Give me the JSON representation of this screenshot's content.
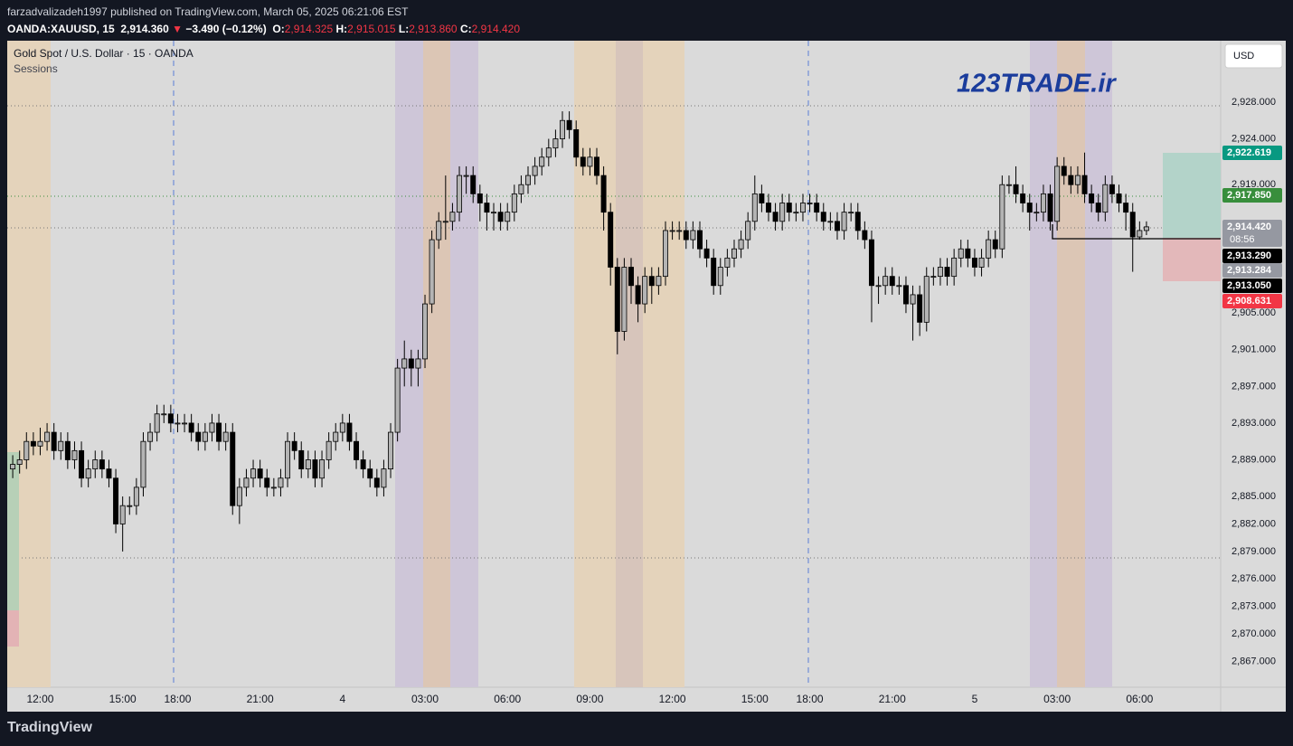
{
  "header": {
    "author_line": "farzadvalizadeh1997 published on TradingView.com, March 05, 2025 06:21:06 EST",
    "symbol": "OANDA:XAUUSD, 15",
    "last": "2,914.360",
    "arrow": "▼",
    "change": "−3.490 (−0.12%)",
    "ohlc": [
      {
        "key": "O:",
        "value": "2,914.325"
      },
      {
        "key": "H:",
        "value": "2,915.015"
      },
      {
        "key": "L:",
        "value": "2,913.860"
      },
      {
        "key": "C:",
        "value": "2,914.420"
      }
    ]
  },
  "footer": {
    "brand": "TradingView"
  },
  "chart_data": {
    "type": "candlestick",
    "title": "Gold Spot / U.S. Dollar · 15 · OANDA",
    "subtitle": "Sessions",
    "watermark": "123TRADE.ir",
    "currency": "USD",
    "countdown": "08:56",
    "up_color": "#b4b4b4",
    "down_color": "#000000",
    "grid": false,
    "open": [
      2888,
      2888.5,
      2889,
      2891,
      2890.5,
      2891,
      2892,
      2890,
      2891,
      2889,
      2890,
      2887,
      2888,
      2889,
      2888,
      2887,
      2882,
      2884,
      2884,
      2886,
      2891,
      2892,
      2894,
      2894,
      2893,
      2893,
      2893,
      2892,
      2891,
      2892,
      2893,
      2891,
      2892,
      2884,
      2886,
      2887,
      2888,
      2887,
      2886,
      2886,
      2887,
      2891,
      2890,
      2888,
      2889,
      2887,
      2889,
      2891,
      2892,
      2893,
      2891,
      2889,
      2888,
      2887,
      2886,
      2888,
      2892,
      2899,
      2900,
      2899,
      2900,
      2906,
      2913,
      2915,
      2915,
      2916,
      2920,
      2920,
      2918,
      2917,
      2916,
      2916,
      2915,
      2916,
      2918,
      2919,
      2920,
      2921,
      2922,
      2923,
      2924,
      2926,
      2925,
      2922,
      2921,
      2922,
      2920,
      2916,
      2910,
      2903,
      2910,
      2908,
      2906,
      2909,
      2908,
      2909,
      2914,
      2914,
      2914,
      2913,
      2914,
      2912,
      2911,
      2908,
      2910,
      2911,
      2912,
      2913,
      2915,
      2918,
      2917,
      2916,
      2915,
      2917,
      2916,
      2916,
      2917,
      2917,
      2916,
      2915,
      2915,
      2914,
      2916,
      2916,
      2914,
      2913,
      2908,
      2908,
      2909,
      2908,
      2908,
      2906,
      2907,
      2904,
      2909,
      2909,
      2910,
      2909,
      2911,
      2912,
      2911,
      2910,
      2911,
      2913,
      2912,
      2919,
      2919,
      2918,
      2917,
      2916,
      2916,
      2918,
      2915,
      2921,
      2920,
      2919,
      2920,
      2918,
      2917,
      2916,
      2919,
      2918,
      2917,
      2916,
      2913.3,
      2914
    ],
    "high": [
      2889.5,
      2890,
      2892,
      2892,
      2892.5,
      2893,
      2893,
      2892,
      2892,
      2891,
      2891,
      2889,
      2890,
      2890,
      2889,
      2888,
      2885,
      2885,
      2887,
      2892,
      2893,
      2895,
      2895,
      2895,
      2894,
      2894,
      2894,
      2893,
      2893,
      2894,
      2894,
      2893,
      2893,
      2887,
      2888,
      2889,
      2889,
      2888,
      2887,
      2888,
      2892,
      2892,
      2891,
      2890,
      2890,
      2890,
      2892,
      2893,
      2894,
      2894,
      2892,
      2890,
      2889,
      2888,
      2889,
      2893,
      2900,
      2902,
      2901,
      2901,
      2907,
      2914,
      2916,
      2920,
      2917,
      2921,
      2921,
      2921,
      2919,
      2918,
      2917,
      2917,
      2917,
      2919,
      2920,
      2921,
      2922,
      2923,
      2924,
      2925,
      2927,
      2927,
      2926,
      2923,
      2923,
      2923,
      2921,
      2917,
      2911,
      2911,
      2911,
      2909,
      2910,
      2910,
      2910,
      2915,
      2915,
      2915,
      2915,
      2915,
      2915,
      2913,
      2912,
      2911,
      2912,
      2913,
      2914,
      2916,
      2920,
      2919,
      2918,
      2917,
      2918,
      2918,
      2917,
      2918,
      2918,
      2918,
      2917,
      2916,
      2916,
      2917,
      2917,
      2917,
      2915,
      2914,
      2909,
      2910,
      2910,
      2909,
      2909,
      2908,
      2908,
      2910,
      2910,
      2911,
      2911,
      2912,
      2913,
      2913,
      2912,
      2912,
      2914,
      2914,
      2920,
      2920,
      2921,
      2919,
      2918,
      2917,
      2919,
      2919,
      2922,
      2922,
      2921,
      2921,
      2922.5,
      2919,
      2918,
      2920,
      2920,
      2919,
      2918,
      2917,
      2915,
      2915
    ],
    "low": [
      2887,
      2887.5,
      2888,
      2889.5,
      2889.5,
      2890,
      2889,
      2889,
      2888,
      2888,
      2886,
      2886,
      2887,
      2887,
      2886,
      2881,
      2879,
      2883,
      2883,
      2885,
      2890,
      2891,
      2893,
      2892,
      2892,
      2892,
      2891,
      2890,
      2890,
      2891,
      2890,
      2890,
      2883,
      2882,
      2885,
      2886,
      2886,
      2885,
      2885,
      2885,
      2886,
      2889,
      2887,
      2887,
      2886,
      2886,
      2888,
      2890,
      2891,
      2890,
      2888,
      2887,
      2886,
      2885,
      2885,
      2887,
      2891,
      2897,
      2897,
      2897,
      2899,
      2905,
      2912,
      2913,
      2914,
      2915,
      2918,
      2917,
      2915,
      2914,
      2914,
      2914,
      2914,
      2915,
      2917,
      2918,
      2919,
      2920,
      2921,
      2922,
      2923,
      2924,
      2921,
      2920,
      2920,
      2919,
      2914,
      2908,
      2900.5,
      2902,
      2906,
      2904,
      2905,
      2906,
      2907,
      2908,
      2913,
      2913,
      2912,
      2912,
      2911,
      2910,
      2907,
      2907,
      2909,
      2910,
      2911,
      2912,
      2914,
      2916,
      2915,
      2914,
      2914,
      2915,
      2915,
      2915,
      2916,
      2915,
      2914,
      2914,
      2913,
      2913,
      2915,
      2913,
      2912,
      2904,
      2906,
      2907,
      2907,
      2907,
      2905,
      2902,
      2902.5,
      2903,
      2908,
      2908,
      2908,
      2908,
      2910,
      2910,
      2909,
      2909,
      2910,
      2911,
      2911,
      2918,
      2917,
      2916,
      2914,
      2915,
      2915,
      2914,
      2914,
      2919,
      2918,
      2918,
      2917,
      2916,
      2915,
      2915,
      2917,
      2916,
      2914,
      2909.5,
      2913,
      2913.5
    ],
    "close": [
      2888.5,
      2889,
      2891,
      2890.5,
      2891,
      2892,
      2890,
      2891,
      2889,
      2890,
      2887,
      2888,
      2889,
      2888,
      2887,
      2882,
      2884,
      2884,
      2886,
      2891,
      2892,
      2894,
      2894,
      2893,
      2893,
      2893,
      2892,
      2891,
      2892,
      2893,
      2891,
      2892,
      2884,
      2886,
      2887,
      2888,
      2887,
      2886,
      2886,
      2887,
      2891,
      2890,
      2888,
      2889,
      2887,
      2889,
      2891,
      2892,
      2893,
      2891,
      2889,
      2888,
      2887,
      2886,
      2888,
      2892,
      2899,
      2900,
      2899,
      2900,
      2906,
      2913,
      2915,
      2915,
      2916,
      2920,
      2920,
      2918,
      2917,
      2916,
      2916,
      2915,
      2916,
      2918,
      2919,
      2920,
      2921,
      2922,
      2923,
      2924,
      2926,
      2925,
      2922,
      2921,
      2922,
      2920,
      2916,
      2910,
      2903,
      2910,
      2908,
      2906,
      2909,
      2908,
      2909,
      2914,
      2914,
      2914,
      2913,
      2914,
      2912,
      2911,
      2908,
      2910,
      2911,
      2912,
      2913,
      2915,
      2918,
      2917,
      2916,
      2915,
      2917,
      2916,
      2916,
      2917,
      2917,
      2916,
      2915,
      2915,
      2914,
      2916,
      2916,
      2914,
      2913,
      2908,
      2908,
      2909,
      2908,
      2908,
      2906,
      2907,
      2904,
      2909,
      2909,
      2910,
      2909,
      2911,
      2912,
      2911,
      2910,
      2911,
      2913,
      2912,
      2919,
      2919,
      2918,
      2917,
      2916,
      2916,
      2918,
      2915,
      2921,
      2920,
      2919,
      2920,
      2918,
      2917,
      2916,
      2919,
      2918,
      2917,
      2916,
      2913.3,
      2914,
      2914.4
    ],
    "xlim": [
      -0.8,
      175.8
    ],
    "xticks": [
      {
        "value": 4,
        "label": "12:00"
      },
      {
        "value": 16,
        "label": "15:00"
      },
      {
        "value": 24,
        "label": "18:00"
      },
      {
        "value": 36,
        "label": "21:00"
      },
      {
        "value": 48,
        "label": "4"
      },
      {
        "value": 60,
        "label": "03:00"
      },
      {
        "value": 72,
        "label": "06:00"
      },
      {
        "value": 84,
        "label": "09:00"
      },
      {
        "value": 96,
        "label": "12:00"
      },
      {
        "value": 108,
        "label": "15:00"
      },
      {
        "value": 116,
        "label": "18:00"
      },
      {
        "value": 128,
        "label": "21:00"
      },
      {
        "value": 140,
        "label": "5"
      },
      {
        "value": 152,
        "label": "03:00"
      },
      {
        "value": 164,
        "label": "06:00"
      }
    ],
    "ylim": [
      2864.2,
      2934.7
    ],
    "yticks": [
      {
        "value": 2867,
        "label": "2,867.000"
      },
      {
        "value": 2870,
        "label": "2,870.000"
      },
      {
        "value": 2873,
        "label": "2,873.000"
      },
      {
        "value": 2876,
        "label": "2,876.000"
      },
      {
        "value": 2879,
        "label": "2,879.000"
      },
      {
        "value": 2882,
        "label": "2,882.000"
      },
      {
        "value": 2885,
        "label": "2,885.000"
      },
      {
        "value": 2889,
        "label": "2,889.000"
      },
      {
        "value": 2893,
        "label": "2,893.000"
      },
      {
        "value": 2897,
        "label": "2,897.000"
      },
      {
        "value": 2901,
        "label": "2,901.000"
      },
      {
        "value": 2905,
        "label": "2,905.000"
      },
      {
        "value": 2919,
        "label": "2,919.000"
      },
      {
        "value": 2924,
        "label": "2,924.000"
      },
      {
        "value": 2928,
        "label": "2,928.000"
      }
    ],
    "price_labels": [
      {
        "label": "2,922.619",
        "color": "#089981"
      },
      {
        "label": "2,917.850",
        "color": "#388e3c"
      },
      {
        "label": "2,914.420",
        "color": "#9598a1"
      },
      {
        "label": "2,913.290",
        "color": "#000000"
      },
      {
        "label": "2,913.284",
        "color": "#9598a1"
      },
      {
        "label": "2,913.050",
        "color": "#000000"
      },
      {
        "label": "2,908.631",
        "color": "#f23645"
      }
    ]
  }
}
